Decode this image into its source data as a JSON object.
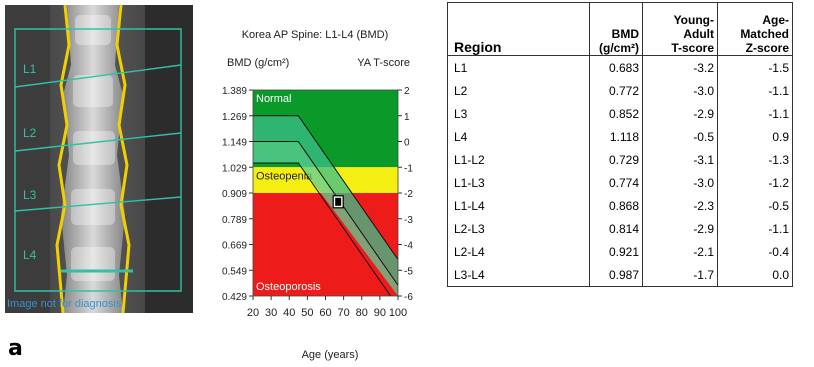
{
  "panel_letter": "a",
  "scan": {
    "labels": [
      "L1",
      "L2",
      "L3",
      "L4"
    ],
    "watermark": "Image not for diagnosis"
  },
  "chart_data": {
    "type": "line",
    "title": "Korea AP Spine: L1-L4 (BMD)",
    "ylabel": "BMD (g/cm²)",
    "y2label": "YA T-score",
    "xlabel": "Age (years)",
    "x_ticks": [
      20,
      30,
      40,
      50,
      60,
      70,
      80,
      90,
      100
    ],
    "y_ticks": [
      "1.389",
      "1.269",
      "1.149",
      "1.029",
      "0.909",
      "0.789",
      "0.669",
      "0.549",
      "0.429"
    ],
    "y2_ticks": [
      "2",
      "1",
      "0",
      "-1",
      "-2",
      "-3",
      "-4",
      "-5",
      "-6"
    ],
    "xlim": [
      20,
      100
    ],
    "ylim": [
      0.429,
      1.389
    ],
    "zones": [
      {
        "label": "Normal",
        "from": 1.029,
        "to": 1.389,
        "color": "#0a9a2a"
      },
      {
        "label": "Osteopenia",
        "from": 0.909,
        "to": 1.029,
        "color": "#f4ee13"
      },
      {
        "label": "Osteoporosis",
        "from": 0.429,
        "to": 0.909,
        "color": "#ee1b1b"
      }
    ],
    "series": [
      {
        "x": [
          20,
          45,
          100
        ],
        "y": [
          1.269,
          1.269,
          0.599
        ],
        "color": "#111"
      },
      {
        "x": [
          20,
          45,
          100
        ],
        "y": [
          1.149,
          1.149,
          0.479
        ],
        "color": "#111"
      },
      {
        "x": [
          20,
          45,
          100
        ],
        "y": [
          1.049,
          1.049,
          0.379
        ],
        "color": "#111"
      }
    ],
    "patient": {
      "x": 67,
      "y": 0.868
    }
  },
  "table": {
    "headers": [
      [
        "Region"
      ],
      [
        "BMD",
        "(g/cm²)"
      ],
      [
        "Young-Adult",
        "T-score"
      ],
      [
        "Age-Matched",
        "Z-score"
      ]
    ],
    "rows": [
      [
        "L1",
        "0.683",
        "-3.2",
        "-1.5"
      ],
      [
        "L2",
        "0.772",
        "-3.0",
        "-1.1"
      ],
      [
        "L3",
        "0.852",
        "-2.9",
        "-1.1"
      ],
      [
        "L4",
        "1.118",
        "-0.5",
        "0.9"
      ],
      [
        "L1-L2",
        "0.729",
        "-3.1",
        "-1.3"
      ],
      [
        "L1-L3",
        "0.774",
        "-3.0",
        "-1.2"
      ],
      [
        "L1-L4",
        "0.868",
        "-2.3",
        "-0.5"
      ],
      [
        "L2-L3",
        "0.814",
        "-2.9",
        "-1.1"
      ],
      [
        "L2-L4",
        "0.921",
        "-2.1",
        "-0.4"
      ],
      [
        "L3-L4",
        "0.987",
        "-1.7",
        "0.0"
      ]
    ]
  }
}
